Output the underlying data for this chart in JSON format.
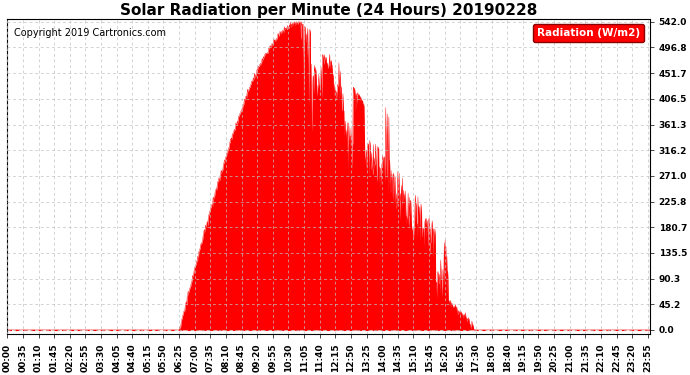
{
  "title": "Solar Radiation per Minute (24 Hours) 20190228",
  "copyright": "Copyright 2019 Cartronics.com",
  "legend_label": "Radiation (W/m2)",
  "fill_color": "#FF0000",
  "line_color": "#FF0000",
  "background_color": "#FFFFFF",
  "grid_color": "#C0C0C0",
  "dashed_line_color": "#FF0000",
  "yticks": [
    0.0,
    45.2,
    90.3,
    135.5,
    180.7,
    225.8,
    271.0,
    316.2,
    361.3,
    406.5,
    451.7,
    496.8,
    542.0
  ],
  "ymax": 542.0,
  "ymin": 0.0,
  "title_fontsize": 11,
  "copyright_fontsize": 7,
  "tick_fontsize": 6.5,
  "legend_fontsize": 7.5
}
